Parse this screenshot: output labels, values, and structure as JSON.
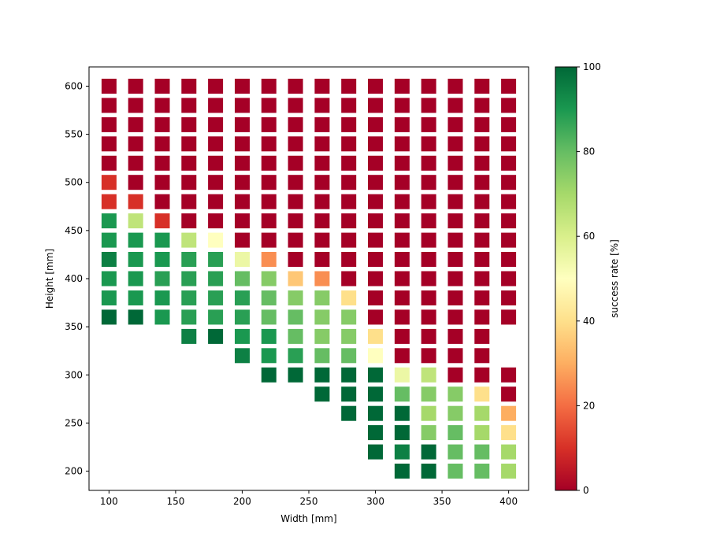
{
  "chart_data": {
    "type": "heatmap",
    "xlabel": "Width [mm]",
    "ylabel": "Height [mm]",
    "xlim": [
      85,
      415
    ],
    "ylim": [
      180,
      620
    ],
    "xticks": [
      100,
      150,
      200,
      250,
      300,
      350,
      400
    ],
    "yticks": [
      200,
      250,
      300,
      350,
      400,
      450,
      500,
      550,
      600
    ],
    "x_values": [
      100,
      120,
      140,
      160,
      180,
      200,
      220,
      240,
      260,
      280,
      300,
      320,
      340,
      360,
      380,
      400
    ],
    "y_values": [
      200,
      220,
      240,
      260,
      280,
      300,
      320,
      340,
      360,
      380,
      400,
      420,
      440,
      460,
      480,
      500,
      520,
      540,
      560,
      580,
      600
    ],
    "grid": false,
    "colorbar": {
      "label": "success rate [%]",
      "range": [
        0,
        100
      ],
      "ticks": [
        0,
        20,
        40,
        60,
        80,
        100
      ],
      "colormap": "RdYlGn",
      "colormap_stops": [
        [
          0,
          "#a50026"
        ],
        [
          0.1,
          "#d73027"
        ],
        [
          0.2,
          "#f46d43"
        ],
        [
          0.3,
          "#fdae61"
        ],
        [
          0.4,
          "#fee08b"
        ],
        [
          0.5,
          "#ffffbf"
        ],
        [
          0.6,
          "#d9ef8b"
        ],
        [
          0.7,
          "#a6d96a"
        ],
        [
          0.8,
          "#66bd63"
        ],
        [
          0.9,
          "#1a9850"
        ],
        [
          1.0,
          "#006837"
        ]
      ]
    },
    "rows": [
      {
        "y": 600,
        "start_x": 100,
        "values": [
          0,
          0,
          0,
          0,
          0,
          0,
          0,
          0,
          0,
          0,
          0,
          0,
          0,
          0,
          0,
          0
        ]
      },
      {
        "y": 580,
        "start_x": 100,
        "values": [
          0,
          0,
          0,
          0,
          0,
          0,
          0,
          0,
          0,
          0,
          0,
          0,
          0,
          0,
          0,
          0
        ]
      },
      {
        "y": 560,
        "start_x": 100,
        "values": [
          0,
          0,
          0,
          0,
          0,
          0,
          0,
          0,
          0,
          0,
          0,
          0,
          0,
          0,
          0,
          0
        ]
      },
      {
        "y": 540,
        "start_x": 100,
        "values": [
          0,
          0,
          0,
          0,
          0,
          0,
          0,
          0,
          0,
          0,
          0,
          0,
          0,
          0,
          0,
          0
        ]
      },
      {
        "y": 520,
        "start_x": 100,
        "values": [
          0,
          0,
          0,
          0,
          0,
          0,
          0,
          0,
          0,
          0,
          0,
          0,
          0,
          0,
          0,
          0
        ]
      },
      {
        "y": 500,
        "start_x": 100,
        "values": [
          10,
          0,
          0,
          0,
          0,
          0,
          0,
          0,
          0,
          0,
          0,
          0,
          0,
          0,
          0,
          0
        ]
      },
      {
        "y": 480,
        "start_x": 100,
        "values": [
          10,
          10,
          0,
          0,
          0,
          0,
          0,
          0,
          0,
          0,
          0,
          0,
          0,
          0,
          0,
          0
        ]
      },
      {
        "y": 460,
        "start_x": 100,
        "values": [
          90,
          65,
          10,
          0,
          0,
          0,
          0,
          0,
          0,
          0,
          0,
          0,
          0,
          0,
          0,
          0
        ]
      },
      {
        "y": 440,
        "start_x": 100,
        "values": [
          90,
          90,
          90,
          65,
          50,
          0,
          0,
          0,
          0,
          0,
          0,
          0,
          0,
          0,
          0,
          0
        ]
      },
      {
        "y": 420,
        "start_x": 100,
        "values": [
          95,
          90,
          90,
          88,
          88,
          55,
          25,
          0,
          0,
          0,
          0,
          0,
          0,
          0,
          0,
          0
        ]
      },
      {
        "y": 400,
        "start_x": 100,
        "values": [
          90,
          90,
          88,
          88,
          88,
          80,
          75,
          35,
          25,
          0,
          0,
          0,
          0,
          0,
          0,
          0
        ]
      },
      {
        "y": 380,
        "start_x": 100,
        "values": [
          90,
          90,
          90,
          88,
          88,
          88,
          80,
          75,
          75,
          40,
          0,
          0,
          0,
          0,
          0,
          0
        ]
      },
      {
        "y": 360,
        "start_x": 100,
        "values": [
          100,
          100,
          90,
          88,
          88,
          88,
          80,
          80,
          75,
          75,
          0,
          0,
          0,
          0,
          0,
          0
        ]
      },
      {
        "y": 340,
        "start_x": 160,
        "values": [
          95,
          100,
          90,
          90,
          80,
          75,
          75,
          40,
          0,
          0,
          0,
          0
        ]
      },
      {
        "y": 320,
        "start_x": 200,
        "values": [
          95,
          90,
          88,
          80,
          80,
          50,
          0,
          0,
          0,
          0
        ]
      },
      {
        "y": 300,
        "start_x": 220,
        "values": [
          100,
          100,
          100,
          100,
          100,
          55,
          65,
          0,
          0,
          0
        ]
      },
      {
        "y": 280,
        "start_x": 260,
        "values": [
          100,
          100,
          100,
          80,
          75,
          75,
          40,
          0
        ]
      },
      {
        "y": 260,
        "start_x": 280,
        "values": [
          100,
          100,
          100,
          70,
          75,
          70,
          30
        ]
      },
      {
        "y": 240,
        "start_x": 300,
        "values": [
          100,
          100,
          75,
          80,
          70,
          40
        ]
      },
      {
        "y": 220,
        "start_x": 300,
        "values": [
          100,
          95,
          100,
          80,
          80,
          70
        ]
      },
      {
        "y": 200,
        "start_x": 320,
        "values": [
          100,
          100,
          80,
          80,
          70
        ]
      }
    ]
  }
}
